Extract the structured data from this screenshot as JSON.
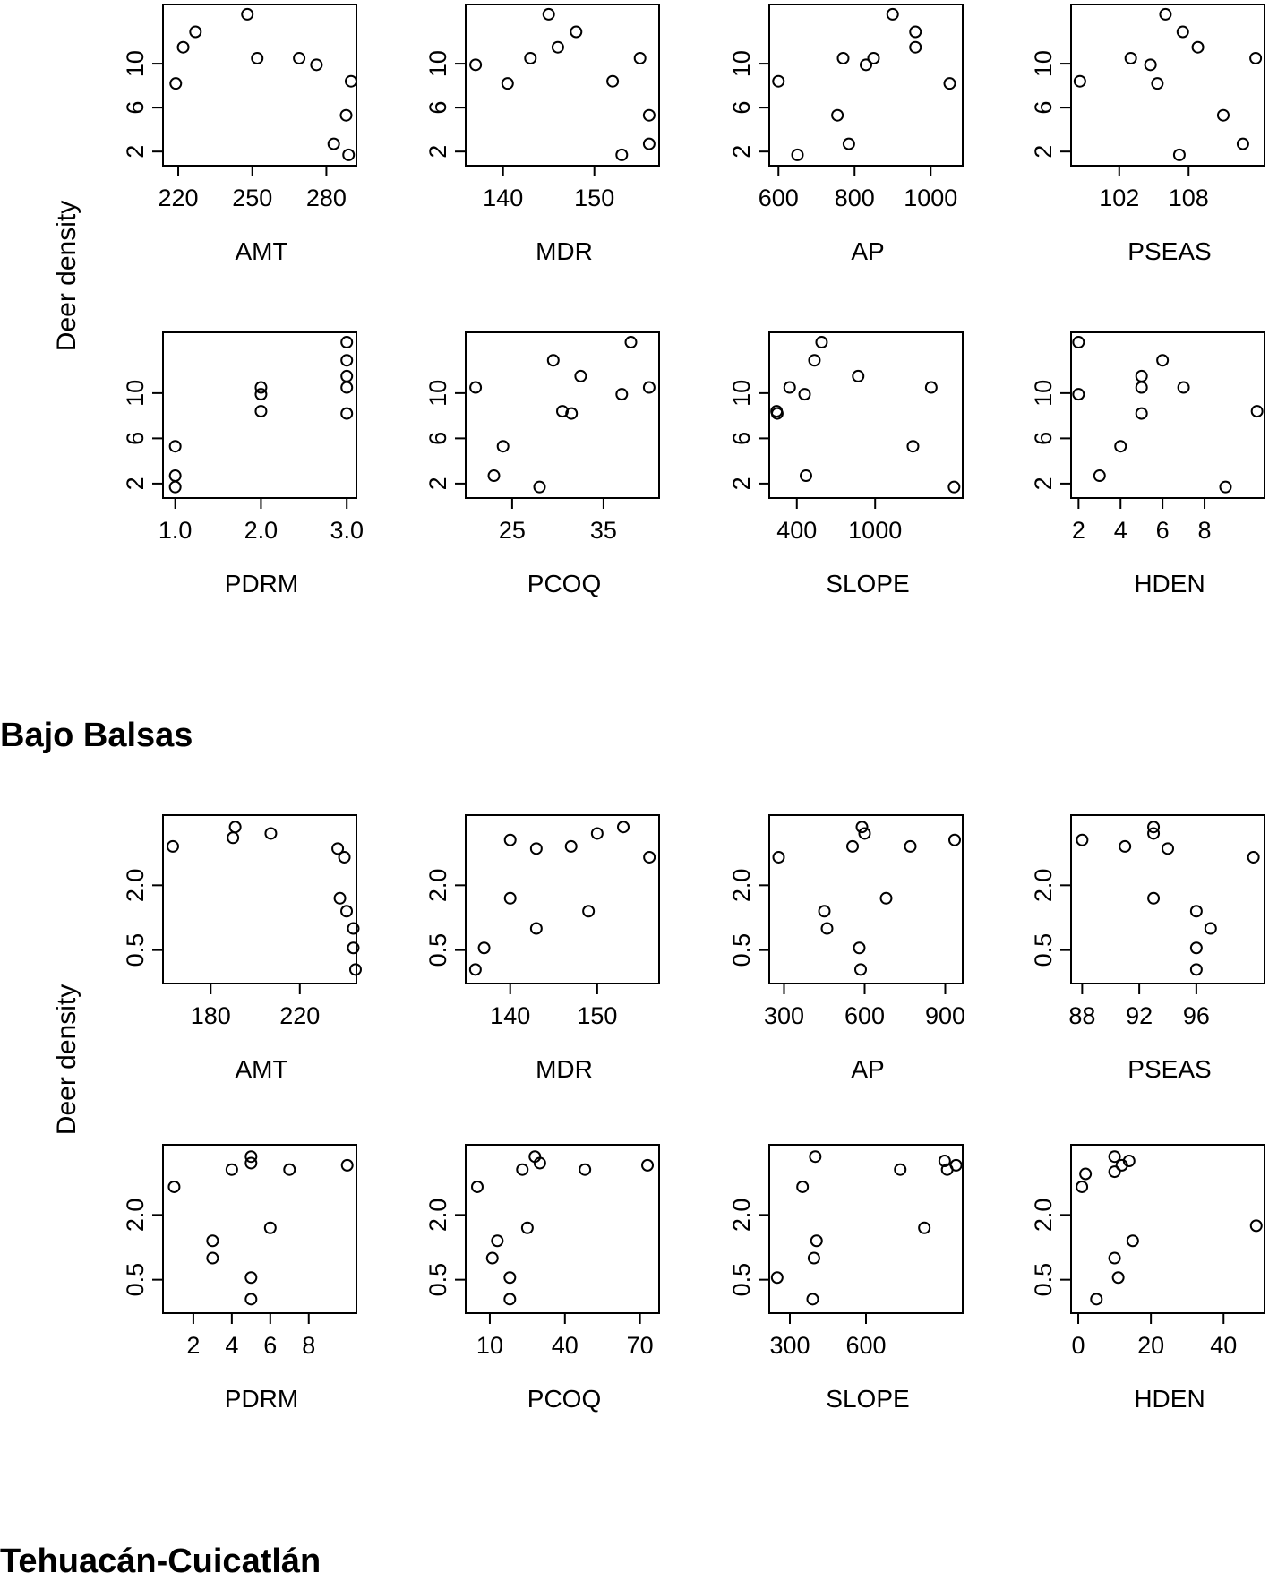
{
  "panels_1": {
    "ylabel": "Deer density",
    "chart_data": [
      {
        "type": "scatter",
        "xlabel": "AMT",
        "xticks": [
          220,
          250,
          280
        ],
        "xlim": [
          216,
          290
        ],
        "yticks": [
          2,
          6,
          10
        ],
        "ylim": [
          1.2,
          14.9
        ],
        "x": [
          219,
          222,
          227,
          248,
          252,
          269,
          276,
          283,
          288,
          289,
          290
        ],
        "y": [
          8.2,
          11.5,
          12.9,
          14.5,
          10.5,
          10.5,
          9.9,
          2.7,
          5.3,
          1.7,
          8.4
        ]
      },
      {
        "type": "scatter",
        "xlabel": "MDR",
        "xticks": [
          140,
          150
        ],
        "xlim": [
          136.5,
          156.5
        ],
        "yticks": [
          2,
          6,
          10
        ],
        "ylim": [
          1.2,
          14.9
        ],
        "x": [
          137,
          140.5,
          143,
          145,
          146,
          148,
          152,
          153,
          155,
          156,
          156
        ],
        "y": [
          9.9,
          8.2,
          10.5,
          14.5,
          11.5,
          12.9,
          8.4,
          1.7,
          10.5,
          5.3,
          2.7
        ]
      },
      {
        "type": "scatter",
        "xlabel": "AP",
        "xticks": [
          600,
          800,
          1000
        ],
        "xlim": [
          590,
          1070
        ],
        "yticks": [
          2,
          6,
          10
        ],
        "ylim": [
          1.2,
          14.9
        ],
        "x": [
          600,
          650,
          755,
          770,
          785,
          830,
          850,
          900,
          960,
          960,
          1050
        ],
        "y": [
          8.4,
          1.7,
          5.3,
          10.5,
          2.7,
          9.9,
          10.5,
          14.5,
          12.9,
          11.5,
          8.2
        ]
      },
      {
        "type": "scatter",
        "xlabel": "PSEAS",
        "xticks": [
          102,
          108
        ],
        "xlim": [
          98.3,
          114.1
        ],
        "yticks": [
          2,
          6,
          10
        ],
        "ylim": [
          1.2,
          14.9
        ],
        "x": [
          98.6,
          103,
          104.7,
          105.3,
          106,
          107.2,
          107.5,
          108.8,
          111,
          112.7,
          113.8
        ],
        "y": [
          8.4,
          10.5,
          9.9,
          8.2,
          14.5,
          1.7,
          12.9,
          11.5,
          5.3,
          2.7,
          10.5
        ]
      },
      {
        "type": "scatter",
        "xlabel": "PDRM",
        "xticks": [
          "1.0",
          "2.0",
          "3.0"
        ],
        "xtick_values": [
          1,
          2,
          3
        ],
        "xlim": [
          0.92,
          3.05
        ],
        "yticks": [
          2,
          6,
          10
        ],
        "ylim": [
          1.2,
          14.9
        ],
        "x": [
          1,
          1,
          1,
          2,
          2,
          2,
          3,
          3,
          3,
          3,
          3
        ],
        "y": [
          1.7,
          2.7,
          5.3,
          10.5,
          9.9,
          8.4,
          14.5,
          12.9,
          11.5,
          10.5,
          8.2
        ]
      },
      {
        "type": "scatter",
        "xlabel": "PCOQ",
        "xticks": [
          25,
          35
        ],
        "xlim": [
          20.5,
          40.5
        ],
        "yticks": [
          2,
          6,
          10
        ],
        "ylim": [
          1.2,
          14.9
        ],
        "x": [
          21,
          23,
          24,
          28,
          29.5,
          30.5,
          31.5,
          32.5,
          37,
          38,
          40
        ],
        "y": [
          10.5,
          2.7,
          5.3,
          1.7,
          12.9,
          8.4,
          8.2,
          11.5,
          9.9,
          14.5,
          10.5
        ]
      },
      {
        "type": "scatter",
        "xlabel": "SLOPE",
        "xticks": [
          400,
          1000
        ],
        "xlim": [
          230,
          1630
        ],
        "yticks": [
          2,
          6,
          10
        ],
        "ylim": [
          1.2,
          14.9
        ],
        "x": [
          245,
          250,
          345,
          460,
          470,
          535,
          590,
          870,
          1290,
          1430,
          1605
        ],
        "y": [
          8.4,
          8.2,
          10.5,
          9.9,
          2.7,
          12.9,
          14.5,
          11.5,
          5.3,
          10.5,
          1.7
        ]
      },
      {
        "type": "scatter",
        "xlabel": "HDEN",
        "xticks": [
          2,
          4,
          6,
          8
        ],
        "xlim": [
          1.9,
          10.6
        ],
        "yticks": [
          2,
          6,
          10
        ],
        "ylim": [
          1.2,
          14.9
        ],
        "x": [
          2,
          2,
          3,
          4,
          5,
          5,
          5,
          6,
          7,
          9,
          10.5
        ],
        "y": [
          14.5,
          9.9,
          2.7,
          5.3,
          11.5,
          10.5,
          8.2,
          12.9,
          10.5,
          1.7,
          8.4
        ]
      }
    ]
  },
  "region_1": "Bajo Balsas",
  "panels_2": {
    "ylabel": "Deer density",
    "chart_data": [
      {
        "type": "scatter",
        "xlabel": "AMT",
        "xticks": [
          180,
          220
        ],
        "xlim": [
          161,
          243
        ],
        "yticks": [
          "0.5",
          "2.0"
        ],
        "ytick_values": [
          0.5,
          2
        ],
        "ylim": [
          -0.15,
          3.5
        ],
        "x": [
          163,
          190,
          191,
          207,
          237,
          240,
          238,
          241,
          244,
          244,
          245
        ],
        "y": [
          2.9,
          3.1,
          3.35,
          3.2,
          2.85,
          2.65,
          1.7,
          1.4,
          1.0,
          0.55,
          0.05
        ]
      },
      {
        "type": "scatter",
        "xlabel": "MDR",
        "xticks": [
          140,
          150
        ],
        "xlim": [
          135.5,
          156.5
        ],
        "yticks": [
          "0.5",
          "2.0"
        ],
        "ytick_values": [
          0.5,
          2
        ],
        "ylim": [
          -0.15,
          3.5
        ],
        "x": [
          136,
          137,
          140,
          140,
          143,
          143,
          147,
          149,
          150,
          153,
          156
        ],
        "y": [
          0.05,
          0.55,
          3.05,
          1.7,
          2.85,
          1.0,
          2.9,
          1.4,
          3.2,
          3.35,
          2.65
        ]
      },
      {
        "type": "scatter",
        "xlabel": "AP",
        "xticks": [
          300,
          600,
          900
        ],
        "xlim": [
          265,
          945
        ],
        "yticks": [
          "0.5",
          "2.0"
        ],
        "ytick_values": [
          0.5,
          2
        ],
        "ylim": [
          -0.15,
          3.5
        ],
        "x": [
          280,
          450,
          460,
          555,
          580,
          585,
          590,
          600,
          680,
          770,
          935
        ],
        "y": [
          2.65,
          1.4,
          1.0,
          2.9,
          0.55,
          0.05,
          3.35,
          3.2,
          1.7,
          2.9,
          3.05
        ]
      },
      {
        "type": "scatter",
        "xlabel": "PSEAS",
        "xticks": [
          88,
          92,
          96
        ],
        "xlim": [
          87.6,
          100.4
        ],
        "yticks": [
          "0.5",
          "2.0"
        ],
        "ytick_values": [
          0.5,
          2
        ],
        "ylim": [
          -0.15,
          3.5
        ],
        "x": [
          88,
          91,
          93,
          93,
          93,
          94,
          96,
          96,
          96,
          97,
          100
        ],
        "y": [
          3.05,
          2.9,
          3.35,
          3.2,
          1.7,
          2.85,
          1.4,
          0.55,
          0.05,
          1.0,
          2.65
        ]
      },
      {
        "type": "scatter",
        "xlabel": "PDRM",
        "xticks": [
          2,
          4,
          6,
          8
        ],
        "xlim": [
          0.7,
          10.2
        ],
        "yticks": [
          "0.5",
          "2.0"
        ],
        "ytick_values": [
          0.5,
          2
        ],
        "ylim": [
          -0.15,
          3.5
        ],
        "x": [
          1,
          3,
          3,
          4,
          5,
          5,
          5,
          5,
          6,
          7,
          10
        ],
        "y": [
          2.65,
          1.4,
          1.0,
          3.05,
          3.35,
          3.2,
          0.55,
          0.05,
          1.7,
          3.05,
          3.15
        ]
      },
      {
        "type": "scatter",
        "xlabel": "PCOQ",
        "xticks": [
          10,
          40,
          70
        ],
        "xlim": [
          2.5,
          75.5
        ],
        "yticks": [
          "0.5",
          "2.0"
        ],
        "ytick_values": [
          0.5,
          2
        ],
        "ylim": [
          -0.15,
          3.5
        ],
        "x": [
          5,
          11,
          13,
          18,
          18,
          23,
          25,
          28,
          30,
          48,
          73
        ],
        "y": [
          2.65,
          1.0,
          1.4,
          0.55,
          0.05,
          3.05,
          1.7,
          3.35,
          3.2,
          3.05,
          3.15
        ]
      },
      {
        "type": "scatter",
        "xlabel": "SLOPE",
        "xticks": [
          300,
          600
        ],
        "xlim": [
          240,
          960
        ],
        "yticks": [
          "0.5",
          "2.0"
        ],
        "ytick_values": [
          0.5,
          2
        ],
        "ylim": [
          -0.15,
          3.5
        ],
        "x": [
          250,
          350,
          390,
          395,
          400,
          405,
          735,
          830,
          910,
          920,
          955
        ],
        "y": [
          0.55,
          2.65,
          0.05,
          1.0,
          3.35,
          1.4,
          3.05,
          1.7,
          3.25,
          3.05,
          3.15
        ]
      },
      {
        "type": "scatter",
        "xlabel": "HDEN",
        "xticks": [
          0,
          20,
          40
        ],
        "xlim": [
          -0.5,
          49.8
        ],
        "yticks": [
          "0.5",
          "2.0"
        ],
        "ytick_values": [
          0.5,
          2
        ],
        "ylim": [
          -0.15,
          3.5
        ],
        "x": [
          1,
          2,
          5,
          10,
          10,
          10,
          11,
          12,
          14,
          15,
          49
        ],
        "y": [
          2.65,
          2.95,
          0.05,
          3.35,
          3.0,
          1.0,
          0.55,
          3.15,
          3.25,
          1.4,
          1.75
        ]
      }
    ]
  },
  "region_2": "Tehuacán-Cuicatlán"
}
